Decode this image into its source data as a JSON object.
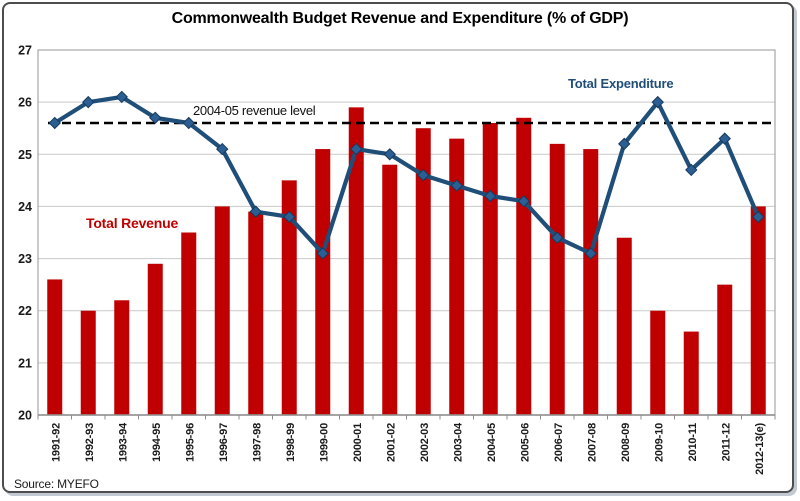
{
  "title": "Commonwealth Budget Revenue and Expenditure (% of GDP)",
  "source": "Source: MYEFO",
  "annotations": {
    "reference_label": "2004-05 revenue level",
    "revenue_label": "Total Revenue",
    "expenditure_label": "Total Expenditure"
  },
  "colors": {
    "bar": "#c00000",
    "line": "#1f4e79",
    "marker_fill": "#2b5f93",
    "marker_stroke": "#17395c",
    "reference_line": "#000000",
    "grid": "#c9c9c9",
    "plot_border": "#a6a6a6",
    "axis": "#8c8c8c",
    "tick_label": "#1a1a1a",
    "frame_border": "#4d4d4d",
    "frame_shadow": "#c2c9d2"
  },
  "chart_data": {
    "type": "bar",
    "title": "Commonwealth Budget Revenue and Expenditure (% of GDP)",
    "xlabel": "",
    "ylabel": "",
    "ylim": [
      20,
      27
    ],
    "yticks": [
      20,
      21,
      22,
      23,
      24,
      25,
      26,
      27
    ],
    "grid": true,
    "legend_position": "inline-labels",
    "categories": [
      "1991-92",
      "1992-93",
      "1993-94",
      "1994-95",
      "1995-96",
      "1996-97",
      "1997-98",
      "1998-99",
      "1999-00",
      "2000-01",
      "2001-02",
      "2002-03",
      "2003-04",
      "2004-05",
      "2005-06",
      "2006-07",
      "2007-08",
      "2008-09",
      "2009-10",
      "2010-11",
      "2011-12",
      "2012-13(e)"
    ],
    "series": [
      {
        "name": "Total Revenue",
        "type": "bar",
        "color": "#c00000",
        "values": [
          22.6,
          22.0,
          22.2,
          22.9,
          23.5,
          24.0,
          23.9,
          24.5,
          25.1,
          25.9,
          24.8,
          25.5,
          25.3,
          25.6,
          25.7,
          25.2,
          25.1,
          23.4,
          22.0,
          21.6,
          22.5,
          24.0
        ]
      },
      {
        "name": "Total Expenditure",
        "type": "line",
        "color": "#1f4e79",
        "marker": "diamond",
        "values": [
          25.6,
          26.0,
          26.1,
          25.7,
          25.6,
          25.1,
          23.9,
          23.8,
          23.1,
          25.1,
          25.0,
          24.6,
          24.4,
          24.2,
          24.1,
          23.4,
          23.1,
          25.2,
          26.0,
          24.7,
          25.3,
          23.8
        ]
      }
    ],
    "reference_line": {
      "value": 25.6,
      "label": "2004-05 revenue level",
      "style": "dashed"
    }
  }
}
